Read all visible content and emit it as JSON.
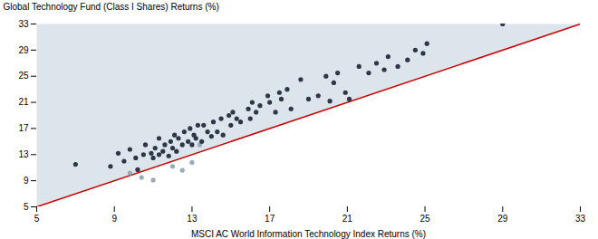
{
  "chart_data": {
    "type": "scatter",
    "xlabel": "MSCI AC World Information Technology Index Returns (%)",
    "ylabel": "Global Technology Fund (Class I Shares) Returns (%)",
    "xlim": [
      5,
      33
    ],
    "ylim": [
      5,
      33
    ],
    "xticks": [
      5,
      9,
      13,
      17,
      21,
      25,
      29,
      33
    ],
    "yticks": [
      5,
      9,
      13,
      17,
      21,
      25,
      29,
      33
    ],
    "grid": false,
    "series": [
      {
        "type": "polygon",
        "color": "#dde5ec",
        "x": [
          5,
          5,
          33
        ],
        "values": [
          5,
          33,
          33
        ]
      },
      {
        "type": "line",
        "color": "#cc0000",
        "x": [
          5,
          33
        ],
        "values": [
          5,
          33
        ]
      },
      {
        "type": "scatter",
        "color": "#9aabb8",
        "x": [
          9.8,
          10.4,
          11.0,
          12.0,
          12.5,
          13.0,
          13.4
        ],
        "values": [
          10.2,
          9.5,
          9.1,
          11.2,
          10.6,
          11.8,
          14.5
        ]
      },
      {
        "type": "scatter",
        "color": "#2d3748",
        "x": [
          7.0,
          8.8,
          9.2,
          9.5,
          9.8,
          10.1,
          10.2,
          10.5,
          10.6,
          10.9,
          11.0,
          11.1,
          11.3,
          11.3,
          11.5,
          11.6,
          11.8,
          11.9,
          12.0,
          12.1,
          12.2,
          12.3,
          12.5,
          12.6,
          12.8,
          12.9,
          13.0,
          13.1,
          13.2,
          13.3,
          13.5,
          13.6,
          13.8,
          14.0,
          14.1,
          14.3,
          14.5,
          14.6,
          14.9,
          15.0,
          15.1,
          15.3,
          15.5,
          15.9,
          16.0,
          16.1,
          16.3,
          16.5,
          16.9,
          17.0,
          17.3,
          17.5,
          17.6,
          17.9,
          18.1,
          18.6,
          19.0,
          19.5,
          19.9,
          20.1,
          20.3,
          20.5,
          20.9,
          21.1,
          21.6,
          22.1,
          22.5,
          22.9,
          23.1,
          23.6,
          24.1,
          24.5,
          24.9,
          25.1,
          29.0
        ],
        "values": [
          11.5,
          11.2,
          13.2,
          12.0,
          13.8,
          12.5,
          10.7,
          13.0,
          14.5,
          13.2,
          12.5,
          14.0,
          13.0,
          15.5,
          13.5,
          14.5,
          12.8,
          15.0,
          14.0,
          16.0,
          13.5,
          15.5,
          14.5,
          16.5,
          15.0,
          17.0,
          14.5,
          16.0,
          15.5,
          17.5,
          15.0,
          17.5,
          16.5,
          15.8,
          18.0,
          16.5,
          18.5,
          16.0,
          19.0,
          17.5,
          19.5,
          18.5,
          18.0,
          20.0,
          18.5,
          21.0,
          19.5,
          20.5,
          22.0,
          21.0,
          19.5,
          22.5,
          21.5,
          23.0,
          20.0,
          24.5,
          21.5,
          22.0,
          25.0,
          21.2,
          24.0,
          25.5,
          22.5,
          21.5,
          26.5,
          25.5,
          27.0,
          26.0,
          28.0,
          26.5,
          27.5,
          29.0,
          28.5,
          30.0,
          33.0
        ]
      }
    ]
  }
}
